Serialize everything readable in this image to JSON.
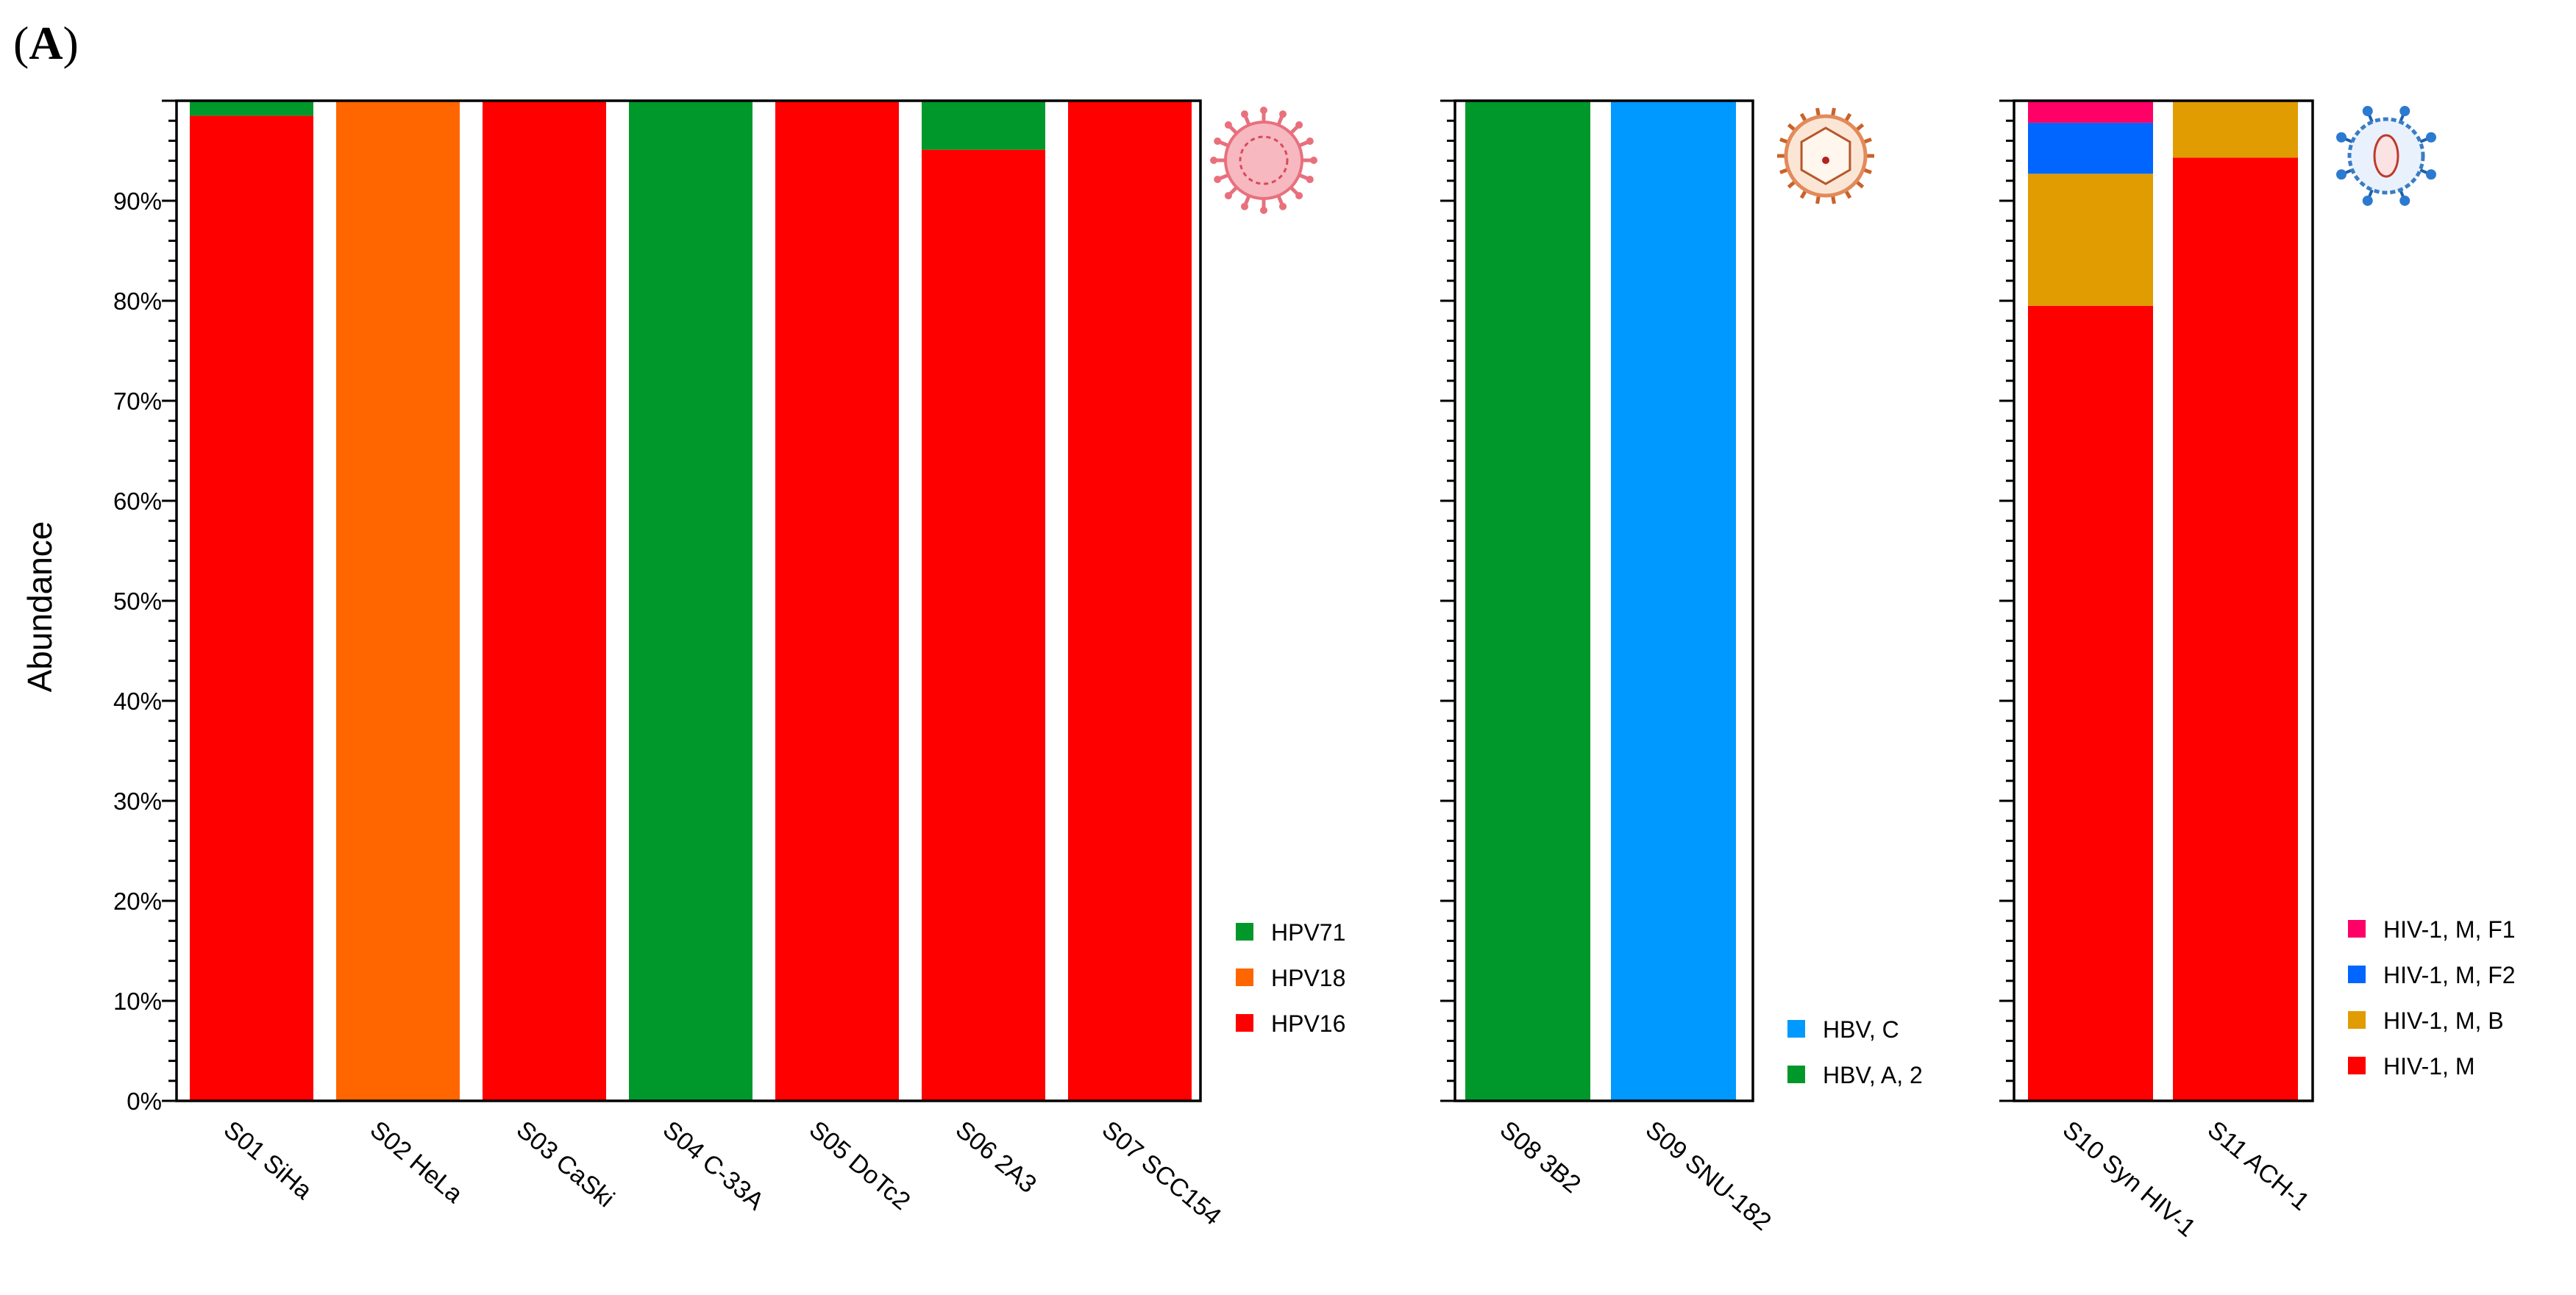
{
  "figure": {
    "panel_label_open": "(",
    "panel_label_letter": "A",
    "panel_label_close": ")"
  },
  "chart_data": {
    "type": "bar",
    "stacked": true,
    "ylabel": "Abundance",
    "ylim": [
      0,
      100
    ],
    "yticks": [
      "0%",
      "10%",
      "20%",
      "30%",
      "40%",
      "50%",
      "60%",
      "70%",
      "80%",
      "90%"
    ],
    "grid": false,
    "panels": [
      {
        "name": "HPV",
        "icon": "hpv-virus-icon",
        "categories": [
          "S01 SiHa",
          "S02 HeLa",
          "S03 CaSki",
          "S04 C-33A",
          "S05 DoTc2",
          "S06 2A3",
          "S07 SCC154"
        ],
        "series": [
          {
            "name": "HPV16",
            "color": "#ff0000",
            "values": [
              98.5,
              0,
              100,
              0,
              100,
              95.1,
              100
            ]
          },
          {
            "name": "HPV18",
            "color": "#ff6600",
            "values": [
              0,
              100,
              0,
              0,
              0,
              0,
              0
            ]
          },
          {
            "name": "HPV71",
            "color": "#00982a",
            "values": [
              1.5,
              0,
              0,
              100,
              0,
              4.9,
              0
            ]
          }
        ],
        "legend": [
          "HPV71",
          "HPV18",
          "HPV16"
        ]
      },
      {
        "name": "HBV",
        "icon": "hbv-virus-icon",
        "categories": [
          "S08 3B2",
          "S09 SNU-182"
        ],
        "series": [
          {
            "name": "HBV, A, 2",
            "color": "#00982a",
            "values": [
              100,
              0
            ]
          },
          {
            "name": "HBV, C",
            "color": "#0099ff",
            "values": [
              0,
              100
            ]
          }
        ],
        "legend": [
          "HBV, C",
          "HBV, A, 2"
        ]
      },
      {
        "name": "HIV",
        "icon": "hiv-virus-icon",
        "categories": [
          "S10 Syn HIV-1",
          "S11 ACH-1"
        ],
        "series": [
          {
            "name": "HIV-1, M",
            "color": "#ff0000",
            "values": [
              79.5,
              94.3
            ]
          },
          {
            "name": "HIV-1, M, B",
            "color": "#e09c00",
            "values": [
              13.2,
              5.7
            ]
          },
          {
            "name": "HIV-1, M, F2",
            "color": "#0066ff",
            "values": [
              5.1,
              0
            ]
          },
          {
            "name": "HIV-1, M, F1",
            "color": "#ff0066",
            "values": [
              2.2,
              0
            ]
          }
        ],
        "legend": [
          "HIV-1, M, F1",
          "HIV-1, M, F2",
          "HIV-1, M, B",
          "HIV-1, M"
        ]
      }
    ]
  }
}
